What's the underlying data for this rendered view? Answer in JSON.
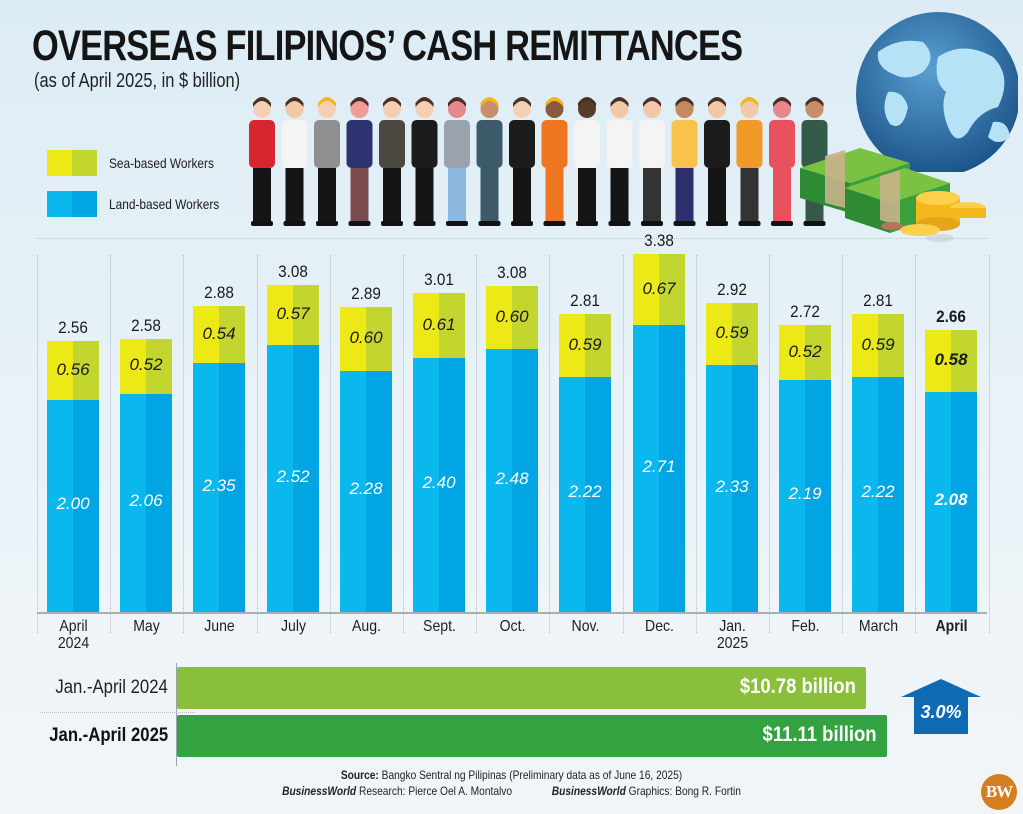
{
  "header": {
    "title": "OVERSEAS FILIPINOS’ CASH REMITTANCES",
    "subtitle": "(as of April 2025, in $ billion)"
  },
  "legend": [
    {
      "label": "Sea-based Workers",
      "colors": [
        "#ece917",
        "#c3d62f"
      ]
    },
    {
      "label": "Land-based Workers",
      "colors": [
        "#0ab8ee",
        "#02a5e3"
      ]
    }
  ],
  "colors": {
    "sea_light": "#ece917",
    "sea_dark": "#c3d62f",
    "land_light": "#0ab8ee",
    "land_dark": "#02a5e3",
    "jan_apr_2024": "#89bf3b",
    "jan_apr_2025": "#33a342",
    "arrow": "#0f6ab4",
    "logo": "#d57f20"
  },
  "chart_data": [
    {
      "type": "bar",
      "stacked": true,
      "title": "OVERSEAS FILIPINOS’ CASH REMITTANCES",
      "subtitle": "(as of April 2025, in $ billion)",
      "xlabel": "",
      "ylabel": "$ billion",
      "grid": false,
      "legend_position": "top-left",
      "categories": [
        "April 2024",
        "May",
        "June",
        "July",
        "Aug.",
        "Sept.",
        "Oct.",
        "Nov.",
        "Dec.",
        "Jan. 2025",
        "Feb.",
        "March",
        "April"
      ],
      "series": [
        {
          "name": "Land-based Workers",
          "values": [
            2.0,
            2.06,
            2.35,
            2.52,
            2.28,
            2.4,
            2.48,
            2.22,
            2.71,
            2.33,
            2.19,
            2.22,
            2.08
          ]
        },
        {
          "name": "Sea-based Workers",
          "values": [
            0.56,
            0.52,
            0.54,
            0.57,
            0.6,
            0.61,
            0.6,
            0.59,
            0.67,
            0.59,
            0.52,
            0.59,
            0.58
          ]
        }
      ],
      "totals": [
        2.56,
        2.58,
        2.88,
        3.08,
        2.89,
        3.01,
        3.08,
        2.81,
        3.38,
        2.92,
        2.72,
        2.81,
        2.66
      ],
      "ylim": [
        0,
        3.4
      ]
    },
    {
      "type": "bar",
      "orientation": "horizontal",
      "categories": [
        "Jan.-April 2024",
        "Jan.-April 2025"
      ],
      "values": [
        10.78,
        11.11
      ],
      "value_labels": [
        "$10.78 billion",
        "$11.11 billion"
      ],
      "annotation": "3.0%"
    }
  ],
  "months": [
    {
      "label_l1": "April",
      "label_l2": "2024",
      "land": "2.00",
      "sea": "0.56",
      "total": "2.56",
      "land_v": 2.0,
      "sea_v": 0.56,
      "bold": false
    },
    {
      "label_l1": "May",
      "label_l2": "",
      "land": "2.06",
      "sea": "0.52",
      "total": "2.58",
      "land_v": 2.06,
      "sea_v": 0.52,
      "bold": false
    },
    {
      "label_l1": "June",
      "label_l2": "",
      "land": "2.35",
      "sea": "0.54",
      "total": "2.88",
      "land_v": 2.35,
      "sea_v": 0.54,
      "bold": false
    },
    {
      "label_l1": "July",
      "label_l2": "",
      "land": "2.52",
      "sea": "0.57",
      "total": "3.08",
      "land_v": 2.52,
      "sea_v": 0.57,
      "bold": false
    },
    {
      "label_l1": "Aug.",
      "label_l2": "",
      "land": "2.28",
      "sea": "0.60",
      "total": "2.89",
      "land_v": 2.28,
      "sea_v": 0.6,
      "bold": false
    },
    {
      "label_l1": "Sept.",
      "label_l2": "",
      "land": "2.40",
      "sea": "0.61",
      "total": "3.01",
      "land_v": 2.4,
      "sea_v": 0.61,
      "bold": false
    },
    {
      "label_l1": "Oct.",
      "label_l2": "",
      "land": "2.48",
      "sea": "0.60",
      "total": "3.08",
      "land_v": 2.48,
      "sea_v": 0.6,
      "bold": false
    },
    {
      "label_l1": "Nov.",
      "label_l2": "",
      "land": "2.22",
      "sea": "0.59",
      "total": "2.81",
      "land_v": 2.22,
      "sea_v": 0.59,
      "bold": false
    },
    {
      "label_l1": "Dec.",
      "label_l2": "",
      "land": "2.71",
      "sea": "0.67",
      "total": "3.38",
      "land_v": 2.71,
      "sea_v": 0.67,
      "bold": false
    },
    {
      "label_l1": "Jan.",
      "label_l2": "2025",
      "land": "2.33",
      "sea": "0.59",
      "total": "2.92",
      "land_v": 2.33,
      "sea_v": 0.59,
      "bold": false
    },
    {
      "label_l1": "Feb.",
      "label_l2": "",
      "land": "2.19",
      "sea": "0.52",
      "total": "2.72",
      "land_v": 2.19,
      "sea_v": 0.52,
      "bold": false
    },
    {
      "label_l1": "March",
      "label_l2": "",
      "land": "2.22",
      "sea": "0.59",
      "total": "2.81",
      "land_v": 2.22,
      "sea_v": 0.59,
      "bold": false
    },
    {
      "label_l1": "April",
      "label_l2": "",
      "land": "2.08",
      "sea": "0.58",
      "total": "2.66",
      "land_v": 2.08,
      "sea_v": 0.58,
      "bold": true
    }
  ],
  "ytd": {
    "rows": [
      {
        "label": "Jan.-April 2024",
        "value_label": "$10.78 billion",
        "value": 10.78
      },
      {
        "label": "Jan.-April 2025",
        "value_label": "$11.11 billion",
        "value": 11.11
      }
    ],
    "change": "3.0%"
  },
  "footer": {
    "source_label": "Source:",
    "source_text": " Bangko Sentral ng Pilipinas (Preliminary data as of June 16, 2025)",
    "research_brand": "BusinessWorld",
    "research_text": "Research: Pierce Oel A. Montalvo",
    "graphics_brand": "BusinessWorld",
    "graphics_text": "Graphics: Bong R. Fortin",
    "logo": "BW"
  },
  "illustration": {
    "workers_icon": "workers-illustration",
    "globe_icon": "globe-icon",
    "money_icon": "money-stack-icon"
  }
}
